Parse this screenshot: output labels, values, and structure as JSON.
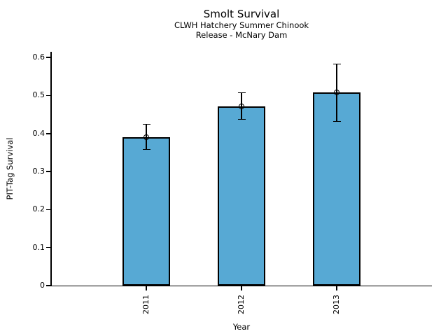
{
  "header": {
    "title": "Smolt Survival",
    "subtitle_line1": "CLWH Hatchery Summer Chinook",
    "subtitle_line2": "Release - McNary Dam"
  },
  "colors": {
    "bar_fill": "#57A9D4",
    "bar_edge": "#000000",
    "axis": "#000000",
    "background": "#ffffff"
  },
  "chart_data": {
    "type": "bar",
    "title": "Smolt Survival",
    "subtitle": [
      "CLWH Hatchery Summer Chinook",
      "Release - McNary Dam"
    ],
    "categories": [
      "2011",
      "2012",
      "2013"
    ],
    "values": [
      0.39,
      0.472,
      0.508
    ],
    "error_low": [
      0.358,
      0.437,
      0.432
    ],
    "error_high": [
      0.424,
      0.507,
      0.583
    ],
    "marker": "open-circle",
    "xlabel": "Year",
    "ylabel": "PIT-Tag Survival",
    "ytick_labels": [
      "0",
      "0.1",
      "0.2",
      "0.3",
      "0.4",
      "0.5",
      "0.6"
    ],
    "ytick_values": [
      0,
      0.1,
      0.2,
      0.3,
      0.4,
      0.5,
      0.6
    ],
    "ylim": [
      0,
      0.615
    ],
    "xtick_rotation_deg": 90,
    "grid": false,
    "legend": null,
    "spines": [
      "left",
      "bottom"
    ]
  }
}
